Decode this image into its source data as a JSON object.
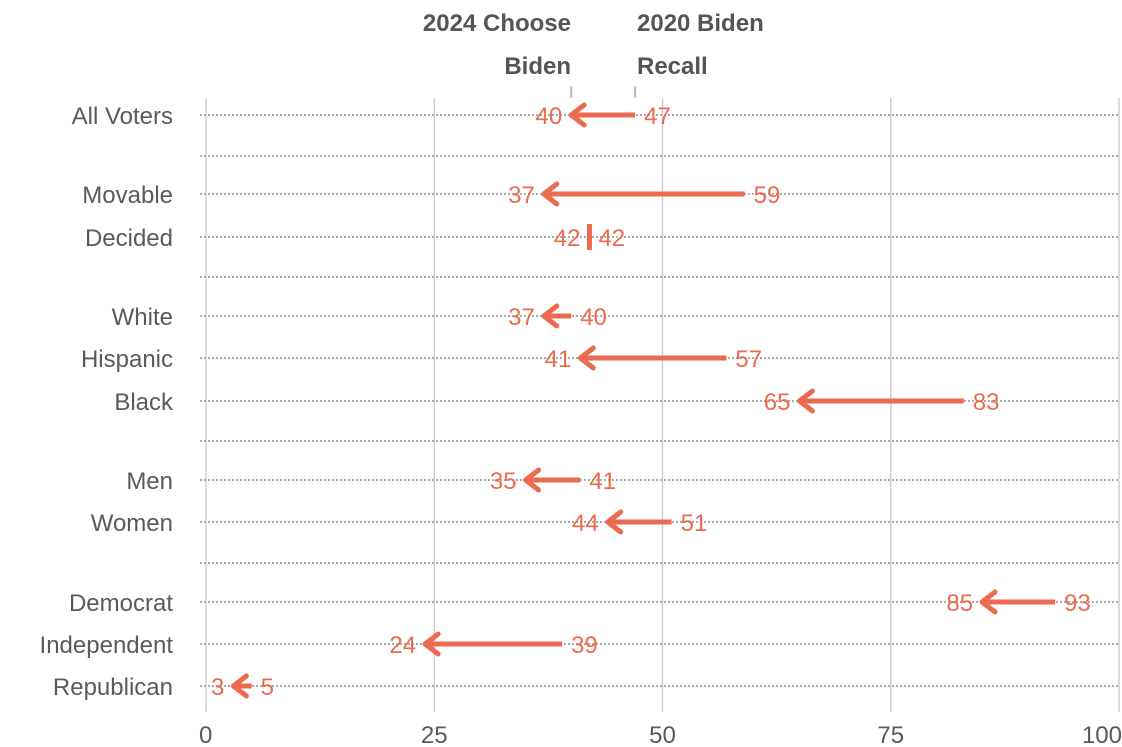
{
  "chart_data": {
    "type": "dumbbell",
    "x_ticks": [
      0,
      25,
      50,
      75,
      100
    ],
    "xlim": [
      0,
      100
    ],
    "grid": true,
    "series_headers": {
      "start": [
        "2020 Biden",
        "Recall"
      ],
      "end": [
        "2024 Choose",
        "Biden"
      ]
    },
    "categories": [
      "All Voters",
      "Movable",
      "Decided",
      "White",
      "Hispanic",
      "Black",
      "Men",
      "Women",
      "Democrat",
      "Independent",
      "Republican"
    ],
    "series": [
      {
        "name": "2020 Biden Recall",
        "values": [
          47,
          59,
          42,
          40,
          57,
          83,
          41,
          51,
          93,
          39,
          5
        ]
      },
      {
        "name": "2024 Choose Biden",
        "values": [
          40,
          37,
          42,
          37,
          41,
          65,
          35,
          44,
          85,
          24,
          3
        ]
      }
    ],
    "colors": {
      "accent": "#ec6a50",
      "text": "#5a5a5a",
      "grid": "#cccccc"
    }
  }
}
